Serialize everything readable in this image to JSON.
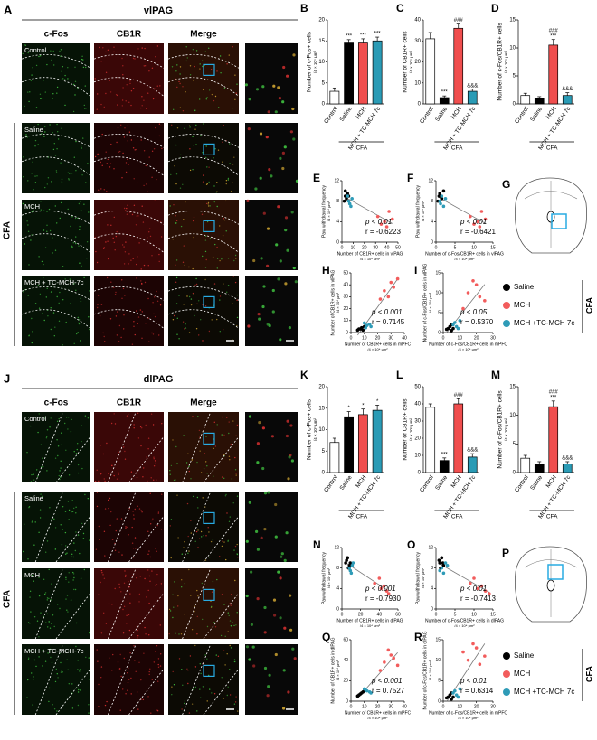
{
  "figure": {
    "panels": [
      {
        "letter": "A",
        "region": "vlPAG",
        "columns": [
          "c-Fos",
          "CB1R",
          "Merge"
        ],
        "rows": [
          "Control",
          "Saline",
          "MCH",
          "MCH + TC-MCH-7c"
        ],
        "group": "CFA",
        "diagram": "G",
        "legend_group": "CFA"
      },
      {
        "letter": "J",
        "region": "dlPAG",
        "columns": [
          "c-Fos",
          "CB1R",
          "Merge"
        ],
        "rows": [
          "Control",
          "Saline",
          "MCH",
          "MCH + TC-MCH-7c"
        ],
        "group": "CFA",
        "diagram": "P",
        "legend_group": "CFA"
      }
    ]
  },
  "chart_data": [
    {
      "type": "bar",
      "letter": "B",
      "ylabel": "Number of c-Fos+ cells",
      "unit": "/4 × 10⁴ μm²",
      "group_label": "CFA",
      "categories": [
        "Control",
        "Saline",
        "MCH",
        "MCH + TC-MCH 7c"
      ],
      "colors": [
        "#ffffff",
        "#000000",
        "#f04e4e",
        "#2a9bb5"
      ],
      "values": [
        3,
        14.5,
        14.5,
        15
      ],
      "errors": [
        0.8,
        0.8,
        1,
        0.9
      ],
      "significance": [
        null,
        [
          "***"
        ],
        [
          "***"
        ],
        [
          "***"
        ]
      ],
      "ylim": [
        0,
        20
      ],
      "yticks": [
        0,
        5,
        10,
        15,
        20
      ]
    },
    {
      "type": "bar",
      "letter": "C",
      "ylabel": "Number of CB1R+ cells",
      "unit": "/4 × 10⁴ μm²",
      "group_label": "CFA",
      "categories": [
        "Control",
        "Saline",
        "MCH",
        "MCH + TC-MCH 7c"
      ],
      "colors": [
        "#ffffff",
        "#000000",
        "#f04e4e",
        "#2a9bb5"
      ],
      "values": [
        31,
        3,
        36,
        6
      ],
      "errors": [
        3,
        0.8,
        2,
        1
      ],
      "significance": [
        null,
        [
          "***"
        ],
        [
          "###"
        ],
        [
          "&&&"
        ]
      ],
      "ylim": [
        0,
        40
      ],
      "yticks": [
        0,
        10,
        20,
        30,
        40
      ]
    },
    {
      "type": "bar",
      "letter": "D",
      "ylabel": "Number of c-Fos/CB1R+ cells",
      "unit": "/4 × 10⁴ μm²",
      "group_label": "CFA",
      "categories": [
        "Control",
        "Saline",
        "MCH",
        "MCH + TC-MCH 7c"
      ],
      "colors": [
        "#ffffff",
        "#000000",
        "#f04e4e",
        "#2a9bb5"
      ],
      "values": [
        1.5,
        1,
        10.5,
        1.5
      ],
      "errors": [
        0.4,
        0.3,
        1,
        0.5
      ],
      "significance": [
        null,
        null,
        [
          "###",
          "***"
        ],
        [
          "&&&"
        ]
      ],
      "ylim": [
        0,
        15
      ],
      "yticks": [
        0,
        5,
        10,
        15
      ]
    },
    {
      "type": "scatter",
      "letter": "E",
      "ylabel": "Paw withdrawal frequency",
      "xlabel": "Number of CB1R+ cells in vlPAG",
      "unit": "/4 × 10⁴ μm²",
      "p_label": "p < 0.01",
      "r_label": "r = -0.6223",
      "xlim": [
        0,
        50
      ],
      "xticks": [
        0,
        10,
        20,
        30,
        40,
        50
      ],
      "ylim": [
        0,
        12
      ],
      "yticks": [
        0,
        4,
        8,
        12
      ],
      "series": [
        {
          "name": "Saline",
          "color": "#000000",
          "x": [
            2,
            3,
            4,
            5,
            3,
            6
          ],
          "y": [
            8,
            9,
            8.5,
            9.5,
            10,
            9
          ]
        },
        {
          "name": "MCH",
          "color": "#f25c5c",
          "x": [
            32,
            38,
            42,
            35,
            45,
            40
          ],
          "y": [
            5,
            4,
            6,
            3.5,
            4.5,
            3
          ]
        },
        {
          "name": "MCH +TC-MCH 7c",
          "color": "#2e9bb7",
          "x": [
            6,
            8,
            5,
            9,
            7
          ],
          "y": [
            8,
            7,
            9,
            8.5,
            7.5
          ]
        }
      ]
    },
    {
      "type": "scatter",
      "letter": "F",
      "ylabel": "Paw withdrawal frequency",
      "xlabel": "Number of c-Fos/CB1R+ cells in vlPAG",
      "unit": "/4 × 10⁴ μm²",
      "p_label": "p < 0.01",
      "r_label": "r = -0.6421",
      "xlim": [
        0,
        15
      ],
      "xticks": [
        0,
        5,
        10,
        15
      ],
      "ylim": [
        0,
        12
      ],
      "yticks": [
        0,
        4,
        8,
        12
      ],
      "series": [
        {
          "name": "Saline",
          "color": "#000000",
          "x": [
            0.5,
            1,
            1.5,
            1,
            2,
            0.8
          ],
          "y": [
            8,
            9,
            8.5,
            9.5,
            10,
            9
          ]
        },
        {
          "name": "MCH",
          "color": "#f25c5c",
          "x": [
            9,
            11,
            12,
            10,
            13,
            11.5
          ],
          "y": [
            5,
            4,
            6,
            3.5,
            4.5,
            3
          ]
        },
        {
          "name": "MCH +TC-MCH 7c",
          "color": "#2e9bb7",
          "x": [
            1,
            2,
            1.5,
            2.5,
            1.2
          ],
          "y": [
            8,
            7,
            9,
            8.5,
            7.5
          ]
        }
      ]
    },
    {
      "type": "scatter",
      "letter": "H",
      "ylabel": "Number of CB1R+ cells in vlPAG",
      "xlabel": "Number of CB1R+ cells in mPFC",
      "unit": "/4 × 10⁴ μm²",
      "p_label": "p < 0.001",
      "r_label": "r = 0.7145",
      "xlim": [
        0,
        40
      ],
      "xticks": [
        0,
        10,
        20,
        30,
        40
      ],
      "ylim": [
        0,
        50
      ],
      "yticks": [
        0,
        10,
        20,
        30,
        40,
        50
      ],
      "series": [
        {
          "name": "Saline",
          "color": "#000000",
          "x": [
            5,
            8,
            6,
            10,
            7,
            9
          ],
          "y": [
            2,
            4,
            3,
            5,
            3,
            2
          ]
        },
        {
          "name": "MCH",
          "color": "#f25c5c",
          "x": [
            25,
            30,
            28,
            35,
            32,
            22
          ],
          "y": [
            35,
            42,
            30,
            45,
            38,
            28
          ]
        },
        {
          "name": "MCH +TC-MCH 7c",
          "color": "#2e9bb7",
          "x": [
            12,
            10,
            15,
            14,
            11
          ],
          "y": [
            6,
            8,
            5,
            7,
            4
          ]
        }
      ]
    },
    {
      "type": "scatter",
      "letter": "I",
      "ylabel": "Number of c-Fos/CB1R+ cells in vlPAG",
      "xlabel": "Number of c-Fos/CB1R+ cells in mPFC",
      "unit": "/4 × 10⁴ μm²",
      "p_label": "p < 0.05",
      "r_label": "r = 0.5370",
      "xlim": [
        0,
        30
      ],
      "xticks": [
        0,
        10,
        20,
        30
      ],
      "ylim": [
        0,
        15
      ],
      "yticks": [
        0,
        5,
        10,
        15
      ],
      "series": [
        {
          "name": "Saline",
          "color": "#000000",
          "x": [
            3,
            5,
            4,
            6,
            2,
            5
          ],
          "y": [
            1,
            0.5,
            1.5,
            1,
            0.8,
            2
          ]
        },
        {
          "name": "MCH",
          "color": "#f25c5c",
          "x": [
            15,
            20,
            25,
            18,
            22,
            12
          ],
          "y": [
            10,
            12,
            8,
            13,
            9,
            6
          ]
        },
        {
          "name": "MCH +TC-MCH 7c",
          "color": "#2e9bb7",
          "x": [
            6,
            8,
            10,
            7,
            9
          ],
          "y": [
            2,
            1.5,
            3,
            2.5,
            1
          ]
        }
      ]
    },
    {
      "type": "bar",
      "letter": "K",
      "ylabel": "Number of c-Fos+ cells",
      "unit": "/4 × 10⁴ μm²",
      "group_label": "CFA",
      "categories": [
        "Control",
        "Saline",
        "MCH",
        "MCH + TC-MCH 7c"
      ],
      "colors": [
        "#ffffff",
        "#000000",
        "#f04e4e",
        "#2a9bb5"
      ],
      "values": [
        7,
        13,
        13.5,
        14.5
      ],
      "errors": [
        1,
        1.2,
        1.3,
        1.2
      ],
      "significance": [
        null,
        [
          "*"
        ],
        [
          "*"
        ],
        [
          "*"
        ]
      ],
      "ylim": [
        0,
        20
      ],
      "yticks": [
        0,
        5,
        10,
        15,
        20
      ]
    },
    {
      "type": "bar",
      "letter": "L",
      "ylabel": "Number of CB1R+ cells",
      "unit": "/4 × 10⁴ μm²",
      "group_label": "CFA",
      "categories": [
        "Control",
        "Saline",
        "MCH",
        "MCH + TC-MCH 7c"
      ],
      "colors": [
        "#ffffff",
        "#000000",
        "#f04e4e",
        "#2a9bb5"
      ],
      "values": [
        38,
        7,
        40,
        9
      ],
      "errors": [
        2,
        1.5,
        3,
        2
      ],
      "significance": [
        null,
        [
          "***"
        ],
        [
          "###"
        ],
        [
          "&&&"
        ]
      ],
      "ylim": [
        0,
        50
      ],
      "yticks": [
        0,
        10,
        20,
        30,
        40,
        50
      ]
    },
    {
      "type": "bar",
      "letter": "M",
      "ylabel": "Number of c-Fos/CB1R+ cells",
      "unit": "/4 × 10⁴ μm²",
      "group_label": "CFA",
      "categories": [
        "Control",
        "Saline",
        "MCH",
        "MCH + TC-MCH 7c"
      ],
      "colors": [
        "#ffffff",
        "#000000",
        "#f04e4e",
        "#2a9bb5"
      ],
      "values": [
        2.5,
        1.5,
        11.5,
        1.5
      ],
      "errors": [
        0.5,
        0.4,
        1,
        0.4
      ],
      "significance": [
        null,
        null,
        [
          "###",
          "***"
        ],
        [
          "&&&"
        ]
      ],
      "ylim": [
        0,
        15
      ],
      "yticks": [
        0,
        5,
        10,
        15
      ]
    },
    {
      "type": "scatter",
      "letter": "N",
      "ylabel": "Paw withdrawal frequency",
      "xlabel": "Number of CB1R+ cells in dlPAG",
      "unit": "/4 × 10⁴ μm²",
      "p_label": "p < 0.001",
      "r_label": "r = -0.7930",
      "xlim": [
        0,
        60
      ],
      "xticks": [
        0,
        20,
        40,
        60
      ],
      "ylim": [
        0,
        12
      ],
      "yticks": [
        0,
        4,
        8,
        12
      ],
      "series": [
        {
          "name": "Saline",
          "color": "#000000",
          "x": [
            4,
            6,
            8,
            5,
            7,
            9
          ],
          "y": [
            9,
            10,
            8.5,
            9.5,
            8,
            9
          ]
        },
        {
          "name": "MCH",
          "color": "#f25c5c",
          "x": [
            35,
            42,
            48,
            40,
            45,
            50
          ],
          "y": [
            5,
            4,
            3.5,
            6,
            4.5,
            3
          ]
        },
        {
          "name": "MCH +TC-MCH 7c",
          "color": "#2e9bb7",
          "x": [
            8,
            10,
            12,
            9,
            11
          ],
          "y": [
            8,
            7,
            9,
            7.5,
            8.5
          ]
        }
      ]
    },
    {
      "type": "scatter",
      "letter": "O",
      "ylabel": "Paw withdrawal frequency",
      "xlabel": "Number of c-Fos/CB1R+ cells in dlPAG",
      "unit": "/4 × 10⁴ μm²",
      "p_label": "p < 0.01",
      "r_label": "r = -0.7413",
      "xlim": [
        0,
        15
      ],
      "xticks": [
        0,
        5,
        10,
        15
      ],
      "ylim": [
        0,
        12
      ],
      "yticks": [
        0,
        4,
        8,
        12
      ],
      "series": [
        {
          "name": "Saline",
          "color": "#000000",
          "x": [
            1,
            1.5,
            2,
            0.8,
            1.2,
            1.8
          ],
          "y": [
            9,
            10,
            8.5,
            9.5,
            8,
            9
          ]
        },
        {
          "name": "MCH",
          "color": "#f25c5c",
          "x": [
            9,
            11,
            13,
            10,
            12,
            14
          ],
          "y": [
            5,
            4,
            3.5,
            6,
            4.5,
            3
          ]
        },
        {
          "name": "MCH +TC-MCH 7c",
          "color": "#2e9bb7",
          "x": [
            1.5,
            2,
            2.5,
            1,
            3
          ],
          "y": [
            8,
            7,
            9,
            7.5,
            8.5
          ]
        }
      ]
    },
    {
      "type": "scatter",
      "letter": "Q",
      "ylabel": "Number of CB1R+ cells in dlPAG",
      "xlabel": "Number of CB1R+ cells in mPFC",
      "unit": "/4 × 10⁴ μm²",
      "p_label": "p < 0.001",
      "r_label": "r = 0.7527",
      "xlim": [
        0,
        40
      ],
      "xticks": [
        0,
        10,
        20,
        30,
        40
      ],
      "ylim": [
        0,
        60
      ],
      "yticks": [
        0,
        20,
        40,
        60
      ],
      "series": [
        {
          "name": "Saline",
          "color": "#000000",
          "x": [
            5,
            8,
            6,
            10,
            7,
            9
          ],
          "y": [
            5,
            8,
            6,
            10,
            7,
            9
          ]
        },
        {
          "name": "MCH",
          "color": "#f25c5c",
          "x": [
            25,
            30,
            28,
            35,
            32,
            22
          ],
          "y": [
            38,
            45,
            50,
            35,
            42,
            30
          ]
        },
        {
          "name": "MCH +TC-MCH 7c",
          "color": "#2e9bb7",
          "x": [
            12,
            10,
            15,
            14,
            11
          ],
          "y": [
            10,
            12,
            8,
            9,
            11
          ]
        }
      ]
    },
    {
      "type": "scatter",
      "letter": "R",
      "ylabel": "Number of c-Fos/CB1R+ cells in dlPAG",
      "xlabel": "Number of c-Fos/CB1R+ cells in mPFC",
      "unit": "/4 × 10⁴ μm²",
      "p_label": "p < 0.01",
      "r_label": "r = 0.6314",
      "xlim": [
        0,
        30
      ],
      "xticks": [
        0,
        10,
        20,
        30
      ],
      "ylim": [
        0,
        15
      ],
      "yticks": [
        0,
        5,
        10,
        15
      ],
      "series": [
        {
          "name": "Saline",
          "color": "#000000",
          "x": [
            3,
            5,
            4,
            6,
            2,
            5
          ],
          "y": [
            1,
            0.5,
            1.5,
            1,
            0.8,
            2
          ]
        },
        {
          "name": "MCH",
          "color": "#f25c5c",
          "x": [
            15,
            20,
            25,
            18,
            22,
            12
          ],
          "y": [
            10,
            13,
            11,
            14,
            9,
            12
          ]
        },
        {
          "name": "MCH +TC-MCH 7c",
          "color": "#2e9bb7",
          "x": [
            6,
            8,
            10,
            7,
            9
          ],
          "y": [
            2,
            1.5,
            3,
            2.5,
            1
          ]
        }
      ]
    }
  ]
}
